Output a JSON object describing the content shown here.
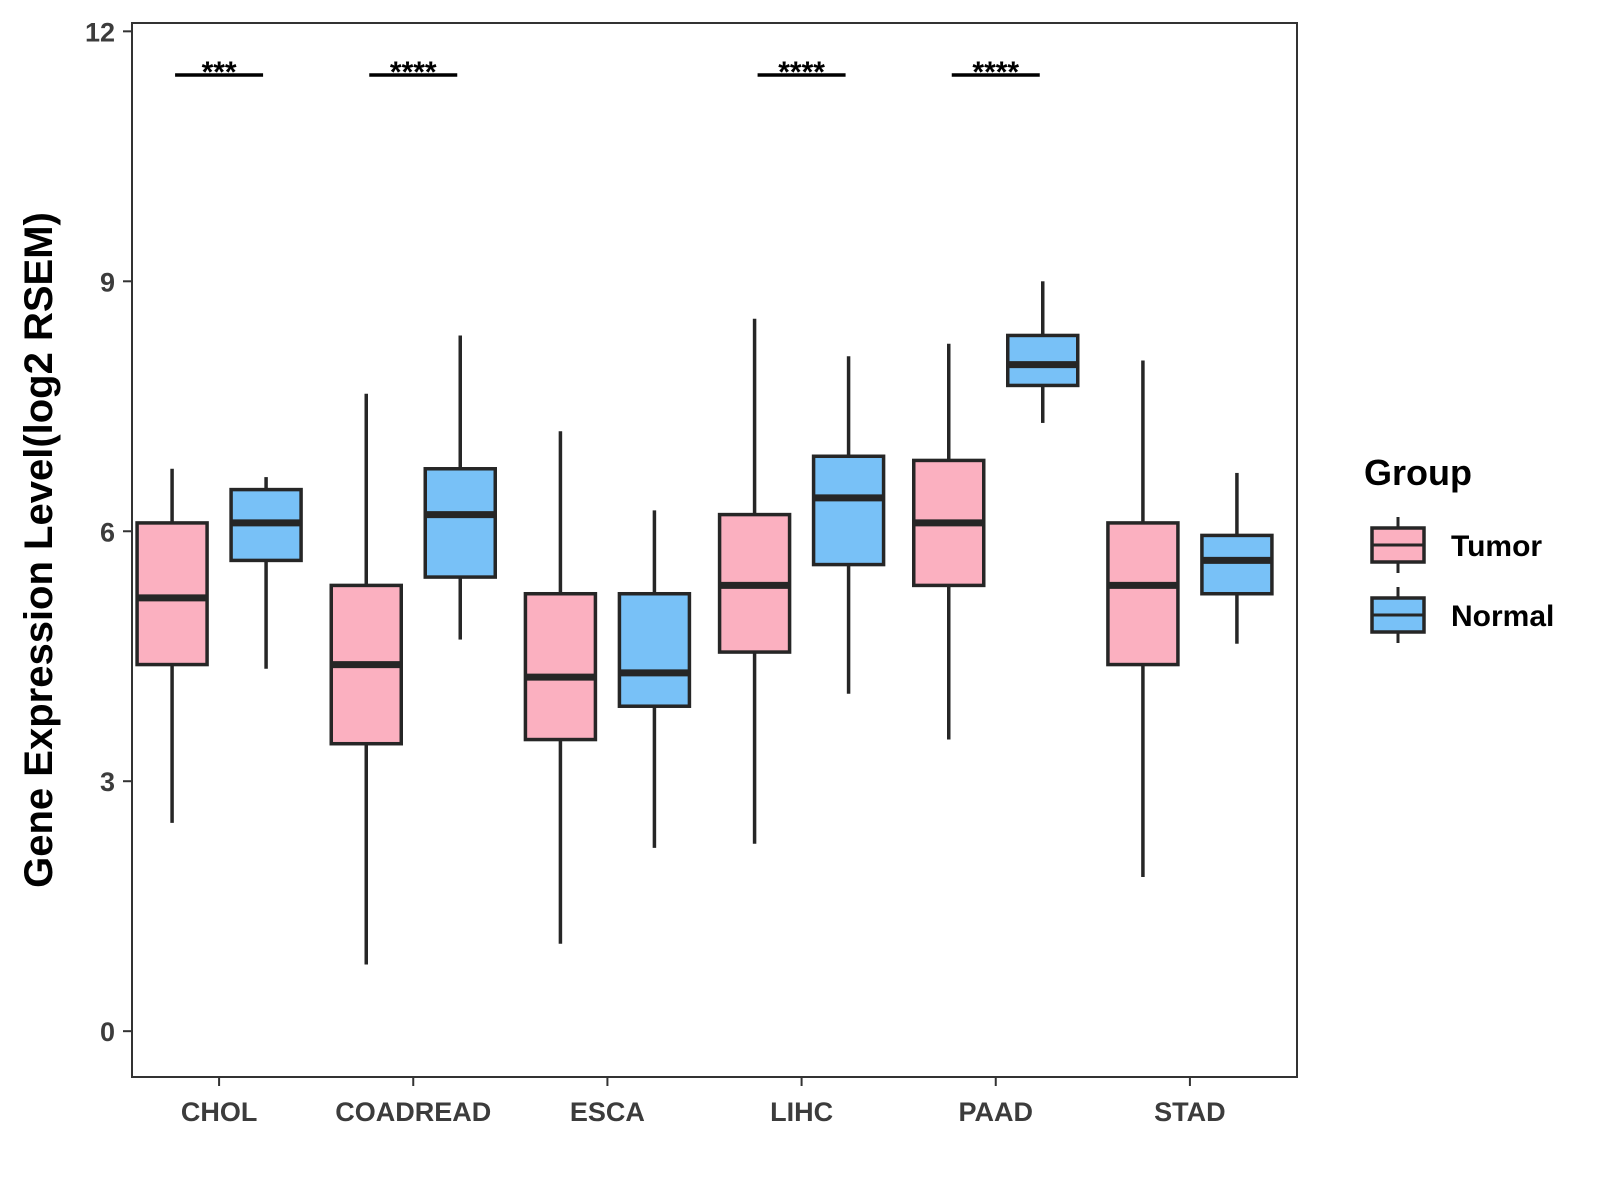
{
  "chart_data": {
    "type": "boxplot",
    "ylabel": "Gene Expression Level(log2 RSEM)",
    "xlabel": "",
    "ylim": [
      -0.55,
      12.1
    ],
    "yticks": [
      0,
      3,
      6,
      9,
      12
    ],
    "categories": [
      "CHOL",
      "COADREAD",
      "ESCA",
      "LIHC",
      "PAAD",
      "STAD"
    ],
    "legend": {
      "title": "Group",
      "position": "right",
      "entries": [
        "Tumor",
        "Normal"
      ]
    },
    "colors": {
      "Tumor": "#FBB0C0",
      "Normal": "#78C1F7",
      "stroke": "#262626"
    },
    "series": [
      {
        "name": "Tumor",
        "boxes": [
          {
            "min": 2.5,
            "q1": 4.4,
            "median": 5.2,
            "q3": 6.1,
            "max": 6.75
          },
          {
            "min": 0.8,
            "q1": 3.45,
            "median": 4.4,
            "q3": 5.35,
            "max": 7.65
          },
          {
            "min": 1.05,
            "q1": 3.5,
            "median": 4.25,
            "q3": 5.25,
            "max": 7.2
          },
          {
            "min": 2.25,
            "q1": 4.55,
            "median": 5.35,
            "q3": 6.2,
            "max": 8.55
          },
          {
            "min": 3.5,
            "q1": 5.35,
            "median": 6.1,
            "q3": 6.85,
            "max": 8.25
          },
          {
            "min": 1.85,
            "q1": 4.4,
            "median": 5.35,
            "q3": 6.1,
            "max": 8.05
          }
        ]
      },
      {
        "name": "Normal",
        "boxes": [
          {
            "min": 4.35,
            "q1": 5.65,
            "median": 6.1,
            "q3": 6.5,
            "max": 6.65
          },
          {
            "min": 4.7,
            "q1": 5.45,
            "median": 6.2,
            "q3": 6.75,
            "max": 8.35
          },
          {
            "min": 2.2,
            "q1": 3.9,
            "median": 4.3,
            "q3": 5.25,
            "max": 6.25
          },
          {
            "min": 4.05,
            "q1": 5.6,
            "median": 6.4,
            "q3": 6.9,
            "max": 8.1
          },
          {
            "min": 7.3,
            "q1": 7.75,
            "median": 8.0,
            "q3": 8.35,
            "max": 9.0
          },
          {
            "min": 4.65,
            "q1": 5.25,
            "median": 5.65,
            "q3": 5.95,
            "max": 6.7
          }
        ]
      }
    ],
    "significance": [
      {
        "category": "CHOL",
        "label": "***"
      },
      {
        "category": "COADREAD",
        "label": "****"
      },
      {
        "category": "LIHC",
        "label": "****"
      },
      {
        "category": "PAAD",
        "label": "****"
      }
    ]
  }
}
